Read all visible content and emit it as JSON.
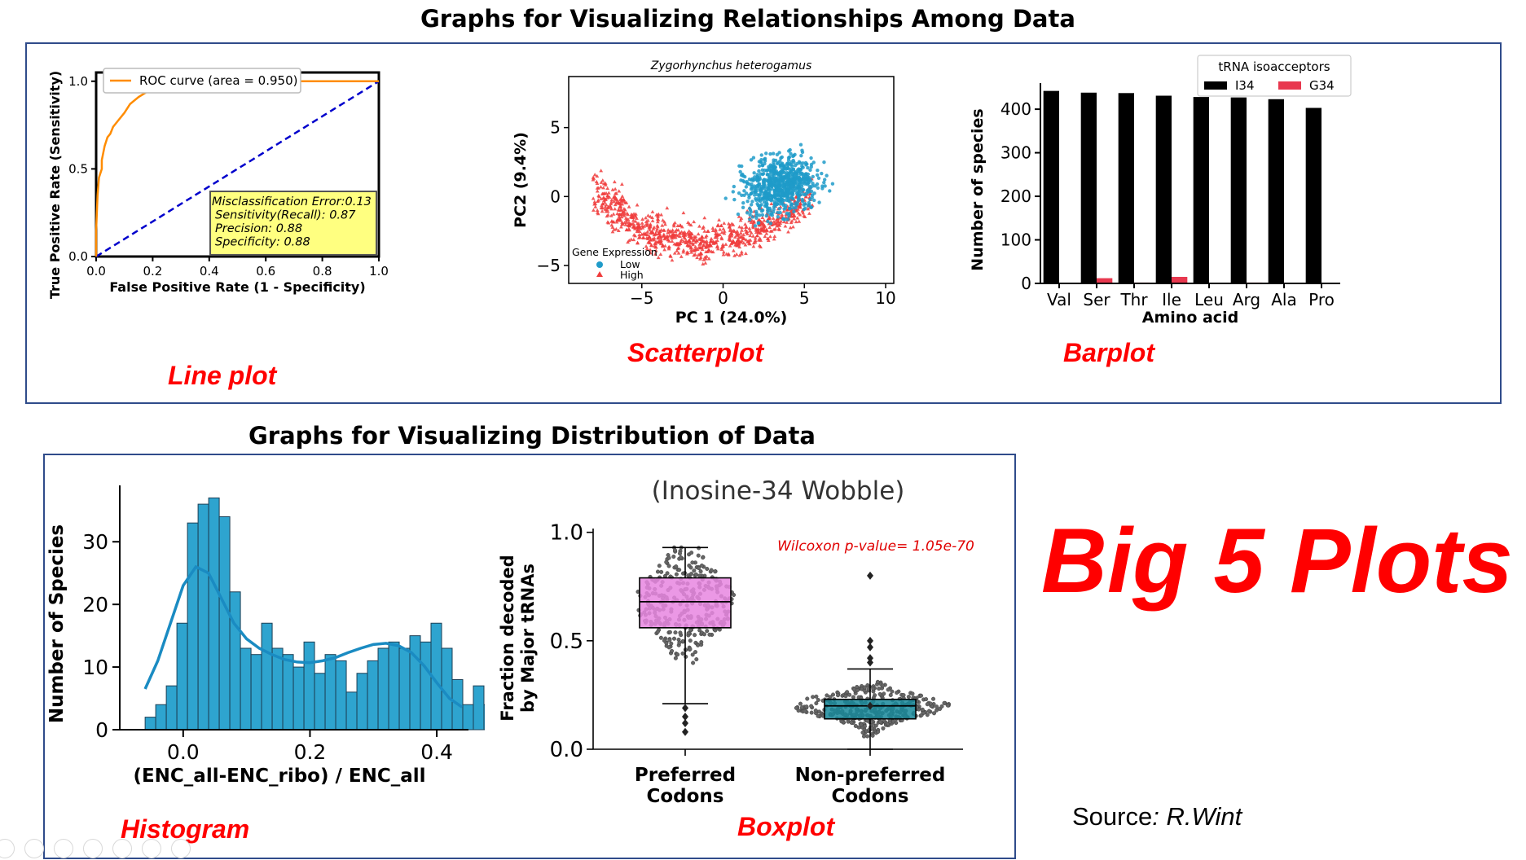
{
  "page": {
    "title_top": "Graphs for Visualizing Relationships Among Data",
    "title_bottom": "Graphs for Visualizing Distribution of Data",
    "big_label": "Big 5 Plots",
    "source_prefix": "Source",
    "source_author": ": R.Wint",
    "labels": {
      "line": "Line plot",
      "scatter": "Scatterplot",
      "bar": "Barplot",
      "hist": "Histogram",
      "box": "Boxplot"
    },
    "accent_red": "#ff0000",
    "frame_color": "#2f4b8a"
  },
  "chart_data": [
    {
      "id": "roc",
      "type": "line",
      "xlabel": "False Positive Rate (1 - Specificity)",
      "ylabel": "True Positive Rate (Sensitivity)",
      "xlim": [
        0,
        1
      ],
      "ylim": [
        0,
        1.05
      ],
      "xticks": [
        "0.0",
        "0.2",
        "0.4",
        "0.6",
        "0.8",
        "1.0"
      ],
      "yticks": [
        "0.0",
        "0.5",
        "1.0"
      ],
      "legend": "ROC curve (area = 0.950)",
      "series": [
        {
          "name": "ROC curve (area = 0.950)",
          "color": "#ff8c00",
          "x": [
            0,
            0,
            0.005,
            0.01,
            0.02,
            0.02,
            0.03,
            0.04,
            0.05,
            0.06,
            0.08,
            0.1,
            0.12,
            0.15,
            0.18,
            0.22,
            0.27,
            0.33,
            0.4,
            0.5,
            0.6,
            0.7,
            0.8,
            0.9,
            1.0
          ],
          "y": [
            0,
            0.15,
            0.35,
            0.45,
            0.5,
            0.55,
            0.63,
            0.68,
            0.7,
            0.74,
            0.78,
            0.82,
            0.87,
            0.91,
            0.94,
            0.96,
            0.98,
            0.99,
            0.995,
            1.0,
            1.0,
            1.0,
            1.0,
            1.0,
            1.0
          ]
        },
        {
          "name": "",
          "color": "#0000cc",
          "dashed": true,
          "x": [
            0,
            1
          ],
          "y": [
            0,
            1
          ]
        }
      ],
      "annotation": [
        "Misclassification Error:0.13",
        "Sensitivity(Recall): 0.87",
        "Precision: 0.88",
        "Specificity: 0.88"
      ]
    },
    {
      "id": "scatter",
      "type": "scatter",
      "title": "Zygorhynchus heterogamus",
      "xlabel": "PC 1 (24.0%)",
      "ylabel": "PC2 (9.4%)",
      "xlim": [
        -9.5,
        10.5
      ],
      "ylim": [
        -6.3,
        8.7
      ],
      "xticks": [
        "−5",
        "0",
        "5",
        "10"
      ],
      "yticks": [
        "−5",
        "0",
        "5"
      ],
      "legend_title": "Gene Expression",
      "series": [
        {
          "name": "Low",
          "color": "#1f9bc9",
          "marker": "circle",
          "center": [
            3.5,
            0.8
          ],
          "spread": [
            2.6,
            2.2
          ],
          "n": 700
        },
        {
          "name": "High",
          "color": "#f03c3c",
          "marker": "triangle",
          "center": [
            -2.5,
            -1.5
          ],
          "spread": [
            3.2,
            1.8
          ],
          "n": 900
        }
      ]
    },
    {
      "id": "bar",
      "type": "bar",
      "xlabel": "Amino acid",
      "ylabel": "Number of species",
      "ylim": [
        0,
        460
      ],
      "yticks": [
        "0",
        "100",
        "200",
        "300",
        "400"
      ],
      "categories": [
        "Val",
        "Ser",
        "Thr",
        "Ile",
        "Leu",
        "Arg",
        "Ala",
        "Pro"
      ],
      "legend_title": "tRNA isoacceptors",
      "series": [
        {
          "name": "I34",
          "color": "#000000",
          "values": [
            442,
            438,
            437,
            431,
            428,
            427,
            423,
            403
          ]
        },
        {
          "name": "G34",
          "color": "#e8384f",
          "values": [
            0,
            12,
            2,
            15,
            0,
            2,
            1,
            1
          ]
        }
      ]
    },
    {
      "id": "hist",
      "type": "bar",
      "xlabel": "(ENC_all-ENC_ribo) / ENC_all",
      "ylabel": "Number of Species",
      "xlim": [
        -0.1,
        0.45
      ],
      "ylim": [
        0,
        39
      ],
      "xticks": [
        "0.0",
        "0.2",
        "0.4"
      ],
      "yticks": [
        "0",
        "10",
        "20",
        "30"
      ],
      "bin_start": -0.06,
      "bin_width": 0.0167,
      "values": [
        2,
        4,
        7,
        17,
        33,
        36,
        37,
        34,
        22,
        13,
        12,
        17,
        13,
        12,
        10,
        14,
        9,
        12,
        11,
        6,
        9,
        11,
        13,
        14,
        13,
        15,
        14,
        17,
        13,
        8,
        4,
        7,
        4,
        3
      ],
      "kde": {
        "color": "#1a8bc2",
        "x": [
          -0.06,
          -0.04,
          -0.02,
          0.0,
          0.02,
          0.04,
          0.06,
          0.08,
          0.1,
          0.12,
          0.14,
          0.16,
          0.18,
          0.2,
          0.22,
          0.24,
          0.26,
          0.28,
          0.3,
          0.32,
          0.34,
          0.36,
          0.38,
          0.4,
          0.42,
          0.44
        ],
        "y": [
          6.5,
          11,
          17,
          23,
          26,
          25,
          21,
          17,
          14.5,
          13,
          12,
          11.2,
          10.8,
          10.7,
          11,
          11.5,
          12.3,
          13,
          13.6,
          13.8,
          13.4,
          12.3,
          10.2,
          7.5,
          5,
          3.6
        ]
      }
    },
    {
      "id": "box",
      "type": "box",
      "title": "(Inosine-34 Wobble)",
      "ylabel": "Fraction decoded by Major tRNAs",
      "ylim": [
        0,
        1.1
      ],
      "yticks": [
        "0.0",
        "0.5",
        "1.0"
      ],
      "categories": [
        "Preferred Codons",
        "Non-preferred Codons"
      ],
      "annotation": "Wilcoxon p-value= 1.05e-70",
      "boxes": [
        {
          "name": "Preferred Codons",
          "color": "#e786e0",
          "whisker_low": 0.21,
          "q1": 0.56,
          "median": 0.68,
          "q3": 0.79,
          "whisker_high": 0.93,
          "outliers": [
            0.19,
            0.15,
            0.12,
            0.08
          ]
        },
        {
          "name": "Non-preferred Codons",
          "color": "#18889a",
          "whisker_low": 0.0,
          "q1": 0.14,
          "median": 0.2,
          "q3": 0.23,
          "whisker_high": 0.37,
          "outliers": [
            0.8,
            0.5,
            0.47,
            0.42,
            0.4,
            0.2
          ]
        }
      ]
    }
  ]
}
